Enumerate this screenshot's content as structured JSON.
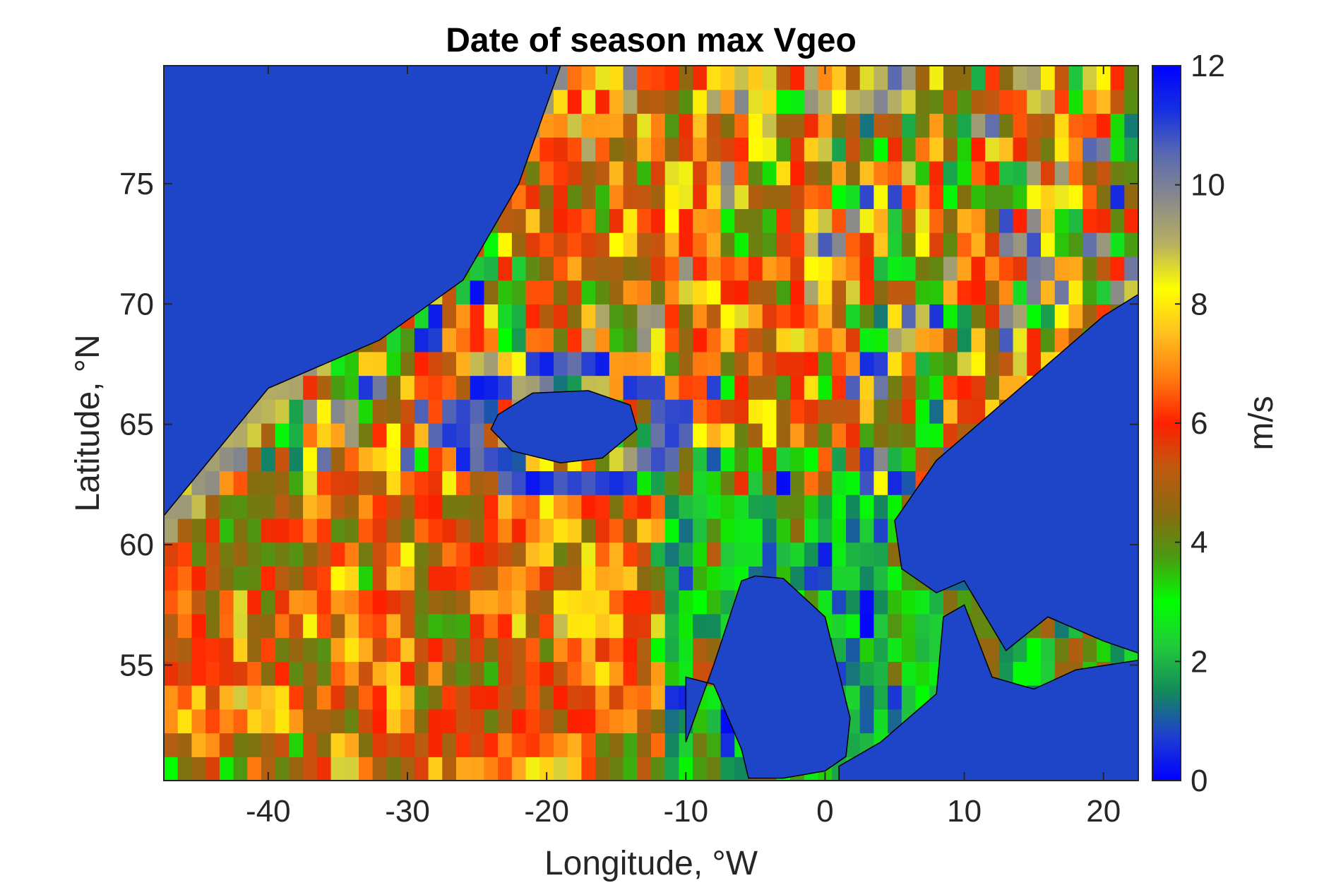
{
  "chart_data": {
    "type": "heatmap",
    "title": "Date of season max Vgeo",
    "xlabel": "Longitude, °W",
    "ylabel": "Latitude, °N",
    "xlim": [
      -47.5,
      22.5
    ],
    "ylim": [
      50.2,
      79.9
    ],
    "x_ticks": [
      -40,
      -30,
      -20,
      -10,
      0,
      10,
      20
    ],
    "x_tick_labels": [
      "-40",
      "-30",
      "-20",
      "-10",
      "0",
      "10",
      "20"
    ],
    "y_ticks": [
      55,
      60,
      65,
      70,
      75
    ],
    "y_tick_labels": [
      "55",
      "60",
      "65",
      "70",
      "75"
    ],
    "grid": false,
    "colorbar": {
      "label": "m/s",
      "range": [
        0,
        12
      ],
      "ticks": [
        0,
        2,
        4,
        6,
        8,
        10,
        12
      ],
      "tick_labels": [
        "0",
        "2",
        "4",
        "6",
        "8",
        "10",
        "12"
      ],
      "colormap": [
        "#0000ff",
        "#1f3fd0",
        "#138a5a",
        "#22c93a",
        "#00ff00",
        "#4a9a12",
        "#8a6a10",
        "#c05a10",
        "#ff2000",
        "#ff7a10",
        "#ffc020",
        "#ffff00",
        "#b8b060",
        "#8a8a8a",
        "#5a6ab0",
        "#1530e0",
        "#0000ff"
      ]
    },
    "land_color": "#0055a5",
    "regions": [
      {
        "name": "Greenland",
        "value": 0.8,
        "lon": [
          -47.5,
          -40,
          -32,
          -26,
          -22,
          -19,
          -19,
          -22,
          -28,
          -36,
          -45,
          -47.5
        ],
        "lat": [
          61.2,
          66.5,
          68.5,
          71,
          75,
          79.9,
          79.9,
          79.9,
          79.9,
          79.9,
          79.9,
          79.9
        ],
        "land": true
      },
      {
        "name": "Iceland",
        "value": 0.8,
        "lon": [
          -23.5,
          -21,
          -17,
          -14,
          -13.5,
          -16,
          -19,
          -22.5,
          -24
        ],
        "lat": [
          65.4,
          66.3,
          66.4,
          65.8,
          64.8,
          63.6,
          63.4,
          63.9,
          64.8
        ],
        "land": true
      },
      {
        "name": "Scandinavia",
        "value": 0.8,
        "lon": [
          5,
          8,
          12,
          16,
          20,
          22.5,
          22.5,
          20,
          16,
          13,
          10,
          8,
          5.5
        ],
        "lat": [
          61,
          63.5,
          65.5,
          67.5,
          69.5,
          70.4,
          55.5,
          56,
          57,
          55.6,
          58.5,
          58,
          59
        ],
        "land": true
      },
      {
        "name": "British Isles",
        "value": 0.8,
        "lon": [
          -10,
          -8,
          -6,
          -5,
          -3,
          0,
          1.8,
          1.5,
          0,
          -3,
          -5.5,
          -6,
          -8,
          -10
        ],
        "lat": [
          51.8,
          55,
          58.5,
          58.7,
          58.6,
          57,
          52.8,
          51.2,
          50.6,
          50.3,
          50.3,
          51.5,
          54.2,
          54.5
        ],
        "land": true
      },
      {
        "name": "Continental Europe",
        "value": 0.8,
        "lon": [
          1,
          4,
          8,
          8.5,
          10,
          12,
          15,
          18,
          22.5,
          22.5,
          1
        ],
        "lat": [
          50.8,
          51.8,
          53.8,
          57,
          57.5,
          54.5,
          54,
          54.8,
          55.2,
          50.2,
          50.2
        ],
        "land": true
      }
    ]
  }
}
